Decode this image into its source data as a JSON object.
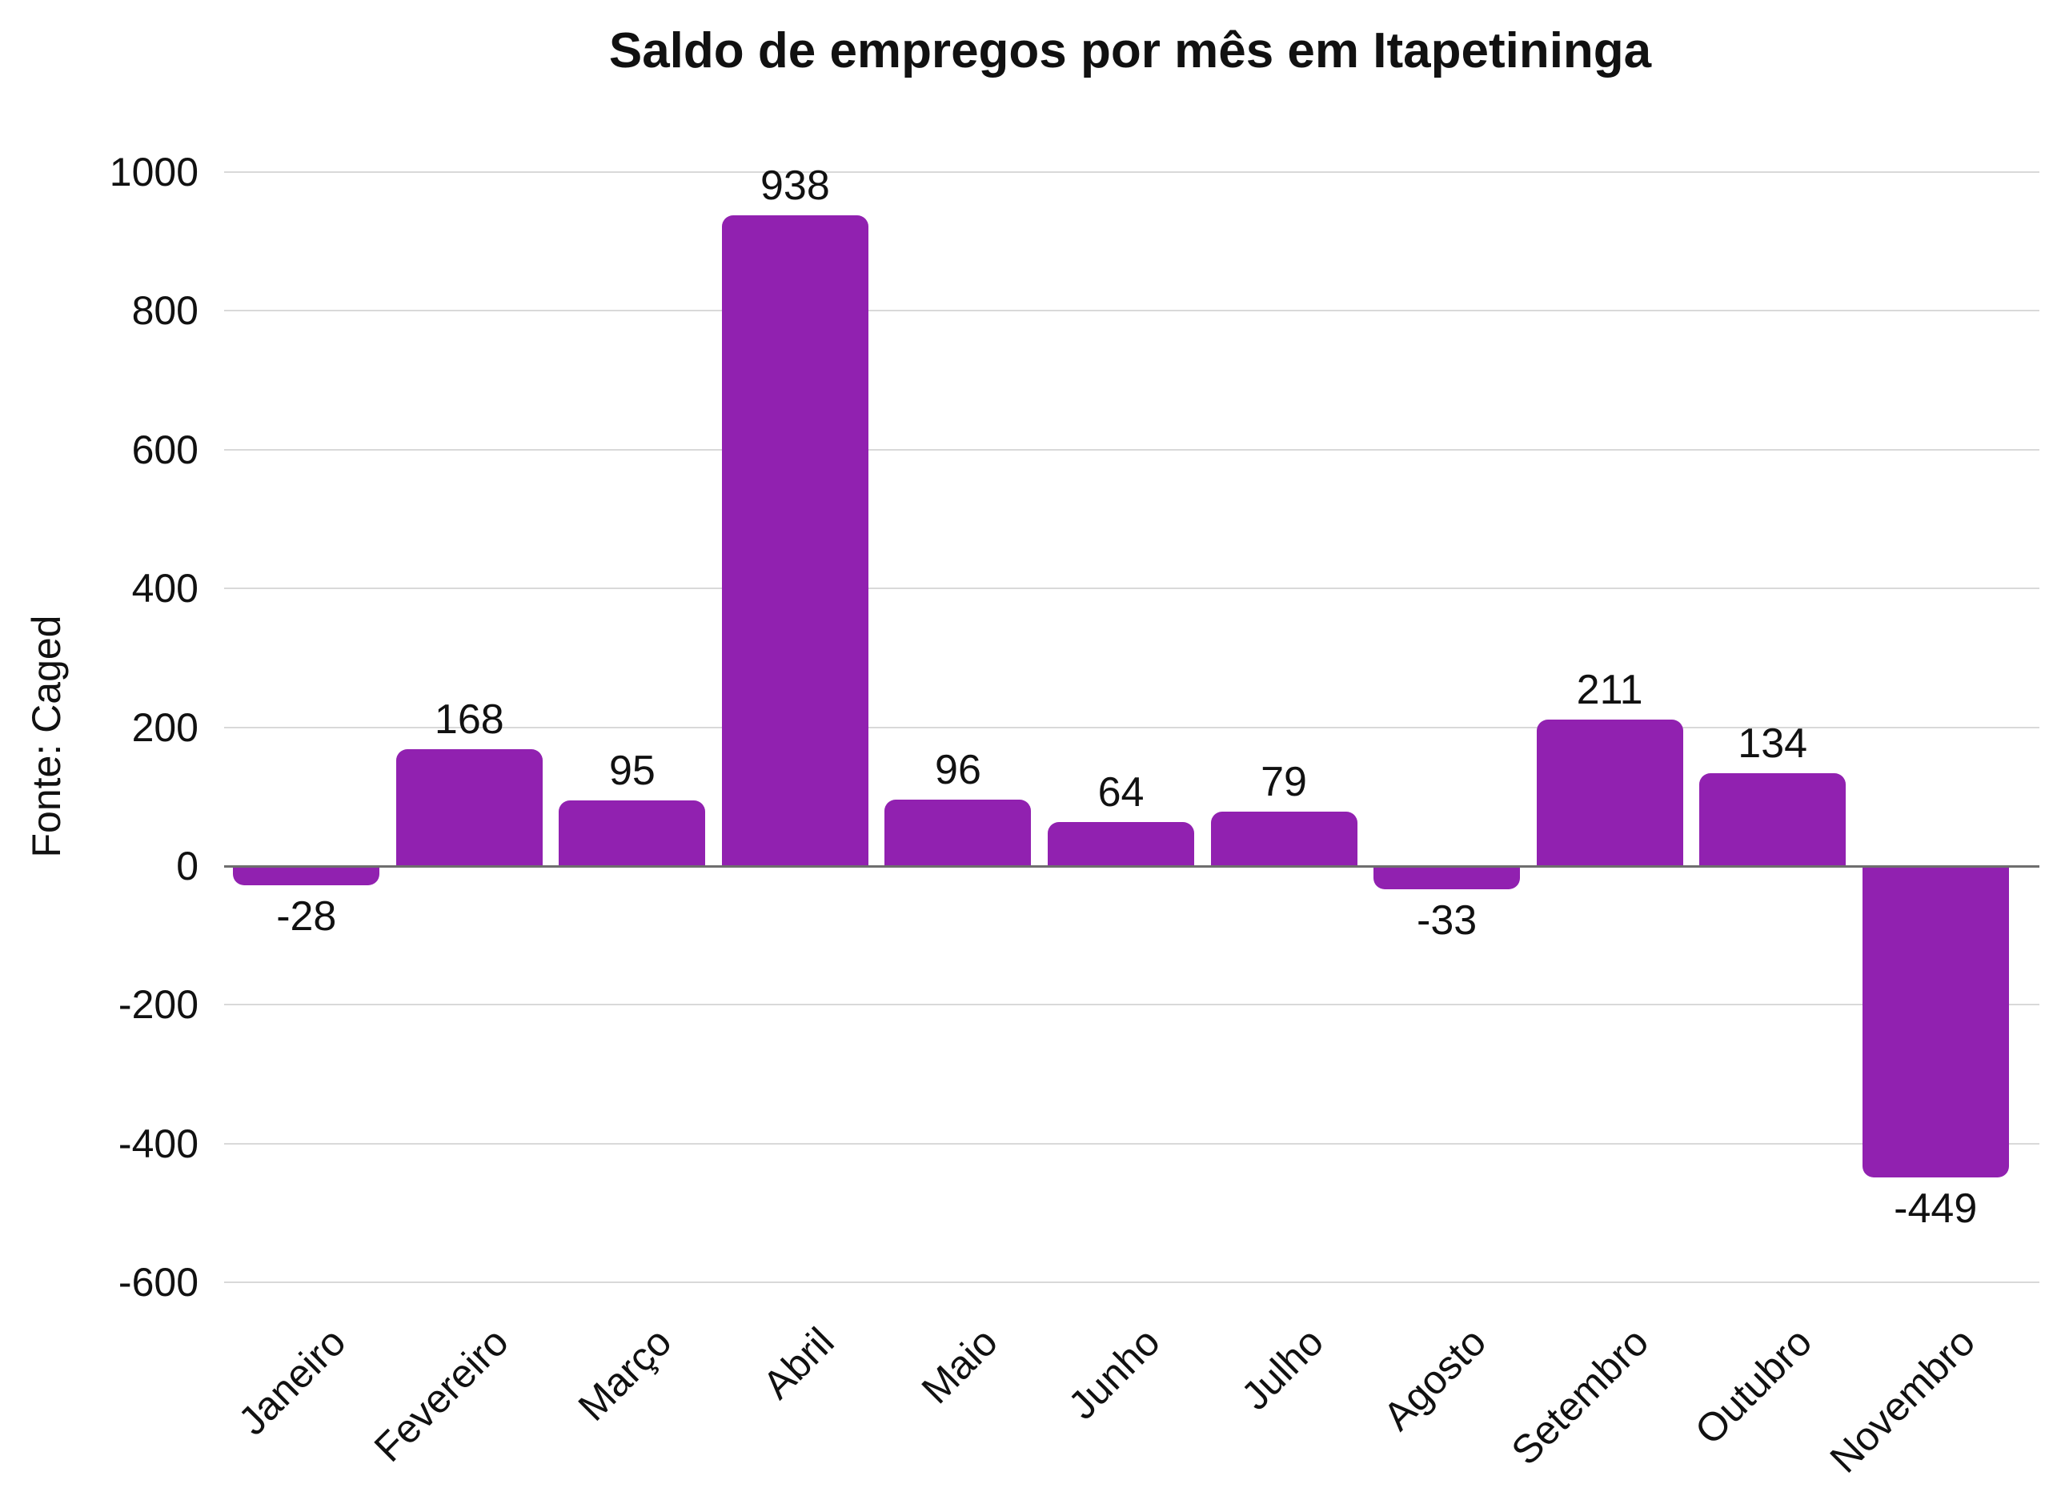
{
  "title": "Saldo de empregos por mês em Itapetininga",
  "chart_data": {
    "type": "bar",
    "title": "Saldo de empregos por mês em Itapetininga",
    "xlabel": "",
    "ylabel": "Fonte: Caged",
    "categories": [
      "Janeiro",
      "Fevereiro",
      "Março",
      "Abril",
      "Maio",
      "Junho",
      "Julho",
      "Agosto",
      "Setembro",
      "Outubro",
      "Novembro"
    ],
    "values": [
      -28,
      168,
      95,
      938,
      96,
      64,
      79,
      -33,
      211,
      134,
      -449
    ],
    "value_labels": [
      "-28",
      "168",
      "95",
      "938",
      "96",
      "64",
      "79",
      "-33",
      "211",
      "134",
      "-449"
    ],
    "ylim": [
      -600,
      1000
    ],
    "yticks": [
      1000,
      800,
      600,
      400,
      200,
      0,
      -200,
      -400,
      -600
    ],
    "grid": true,
    "legend": false,
    "bar_color": "#9121B0",
    "grid_color": "#d9d9d9",
    "zero_line_color": "#6e6e6e",
    "text_color": "#111111",
    "background_color": "#ffffff"
  }
}
